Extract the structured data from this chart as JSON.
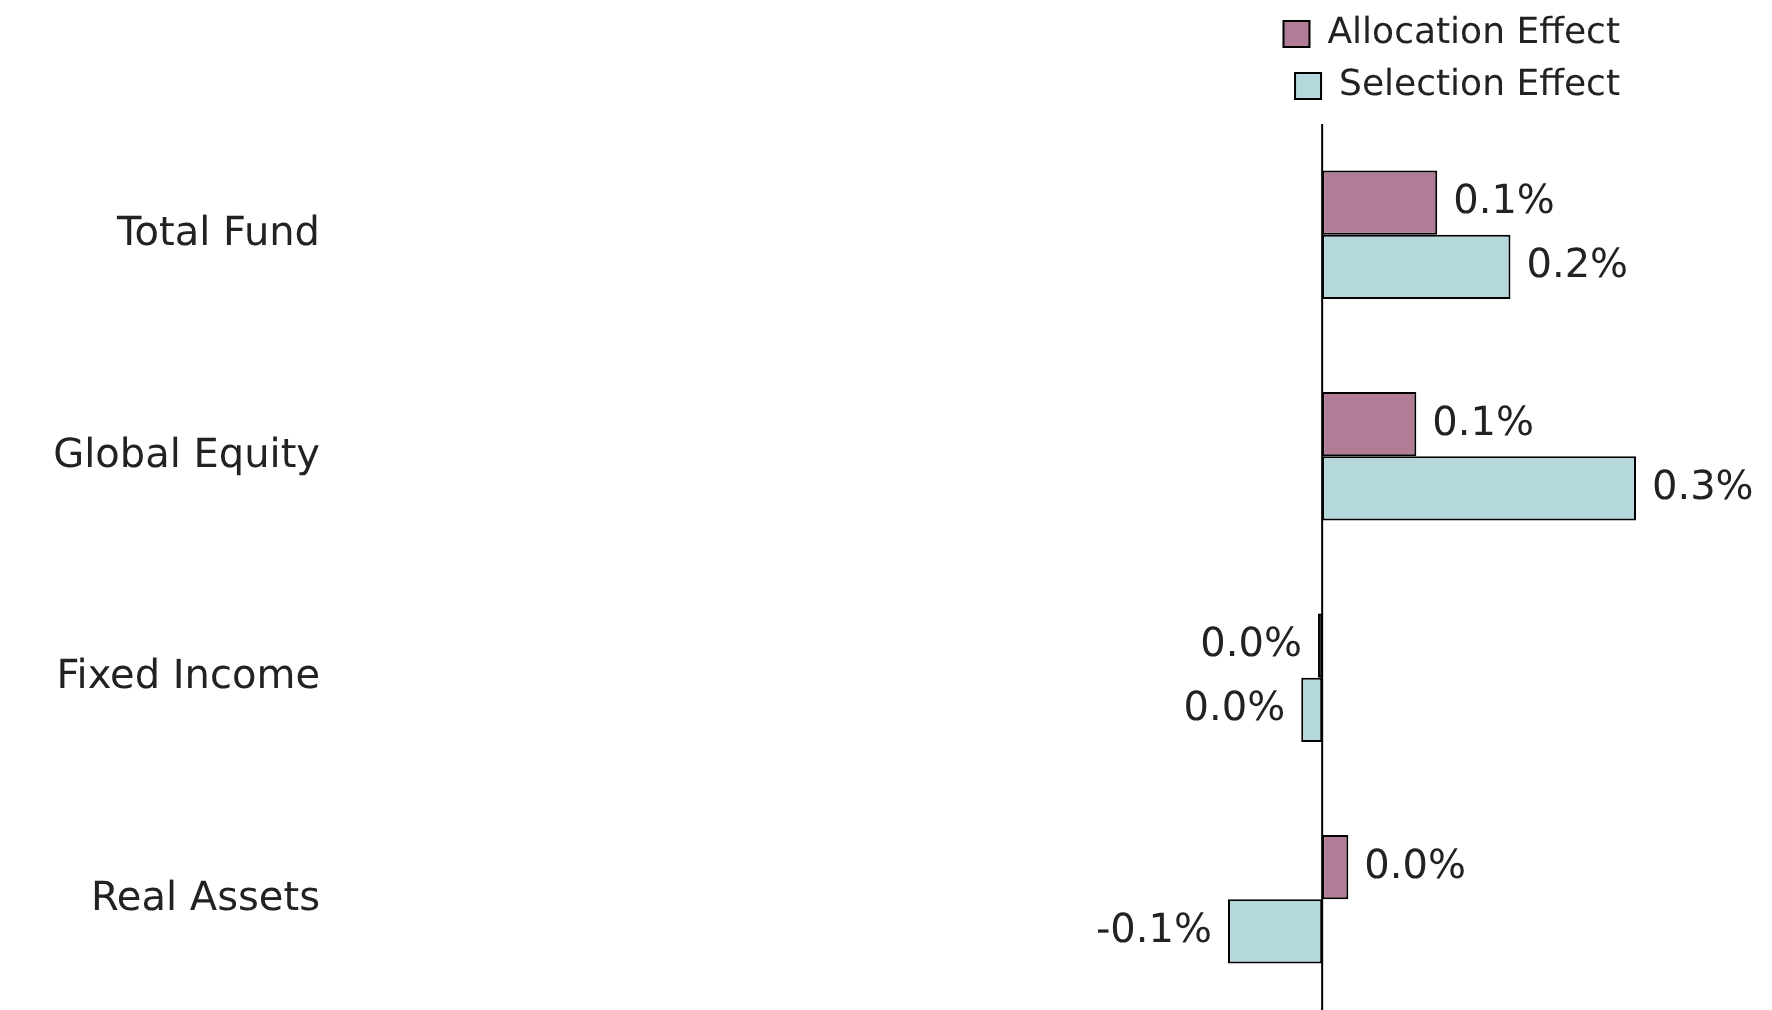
{
  "chart_data": {
    "type": "bar",
    "orientation": "horizontal",
    "categories": [
      "Total Fund",
      "Global Equity",
      "Fixed Income",
      "Real Assets"
    ],
    "series": [
      {
        "name": "Allocation Effect",
        "color": "#b07c96",
        "values": [
          0.11,
          0.09,
          -0.004,
          0.025
        ],
        "value_labels": [
          "0.1%",
          "0.1%",
          "0.0%",
          "0.0%"
        ]
      },
      {
        "name": "Selection Effect",
        "color": "#b5d8dc",
        "values": [
          0.18,
          0.3,
          -0.02,
          -0.09
        ],
        "value_labels": [
          "0.2%",
          "0.3%",
          "0.0%",
          "-0.1%"
        ]
      }
    ],
    "legend": "top right"
  }
}
